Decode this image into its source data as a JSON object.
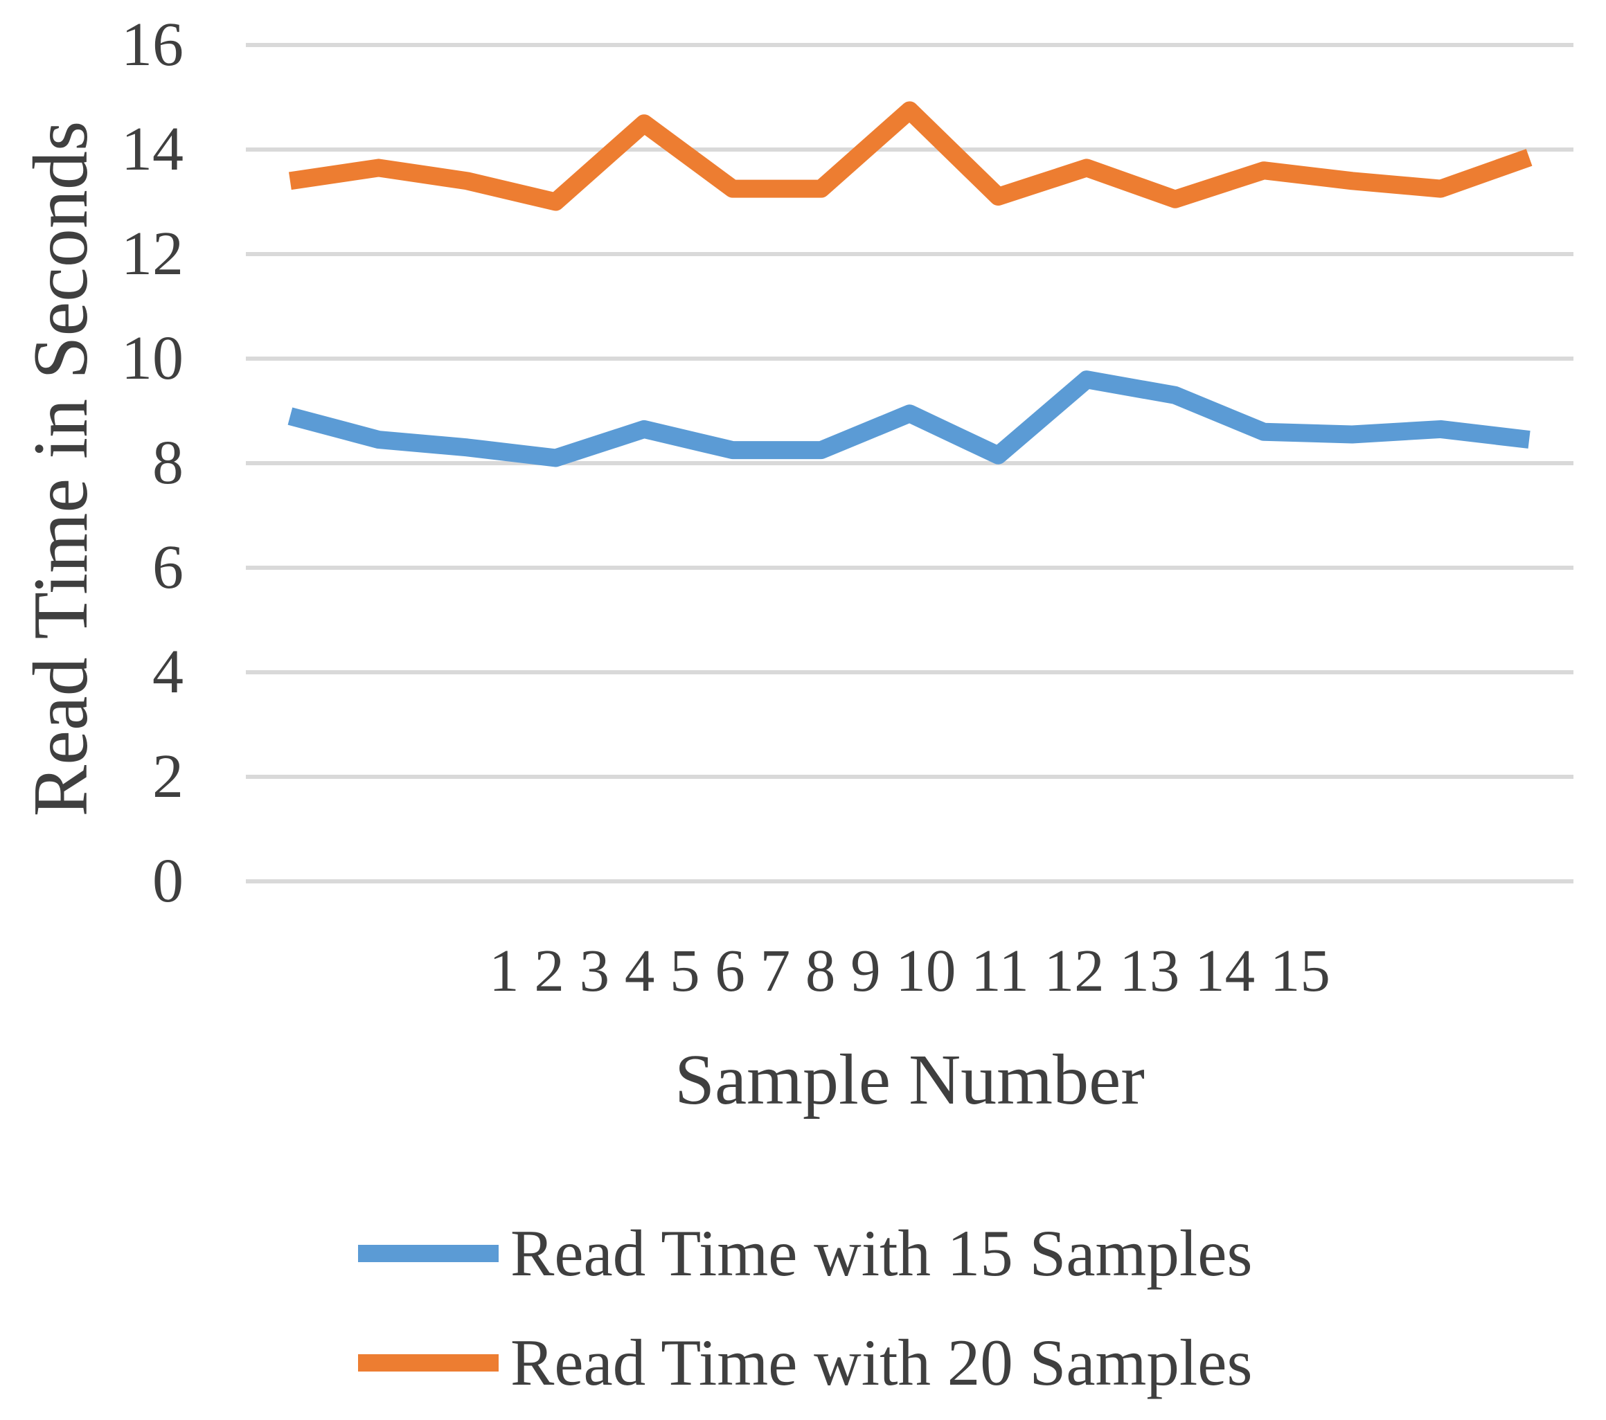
{
  "chart_data": {
    "type": "line",
    "title": "",
    "xlabel": "Sample Number",
    "ylabel": "Read Time in Seconds",
    "categories": [
      "1",
      "2",
      "3",
      "4",
      "5",
      "6",
      "7",
      "8",
      "9",
      "10",
      "11",
      "12",
      "13",
      "14",
      "15"
    ],
    "yticks": [
      0,
      2,
      4,
      6,
      8,
      10,
      12,
      14,
      16
    ],
    "ylim": [
      0,
      16
    ],
    "grid": "horizontal-only",
    "gridline_color": "#d9d9d9",
    "text_color": "#3f3f3f",
    "legend_position": "bottom-left",
    "series": [
      {
        "name": "Read Time with 15 Samples",
        "color": "#5b9bd5",
        "values": [
          8.9,
          8.45,
          8.3,
          8.1,
          8.65,
          8.25,
          8.25,
          8.95,
          8.15,
          9.6,
          9.3,
          8.6,
          8.55,
          8.65,
          8.45
        ]
      },
      {
        "name": "Read Time with 20 Samples",
        "color": "#ed7d31",
        "values": [
          13.4,
          13.65,
          13.4,
          13.0,
          14.5,
          13.25,
          13.25,
          14.75,
          13.1,
          13.65,
          13.05,
          13.6,
          13.4,
          13.25,
          13.85
        ]
      }
    ]
  }
}
